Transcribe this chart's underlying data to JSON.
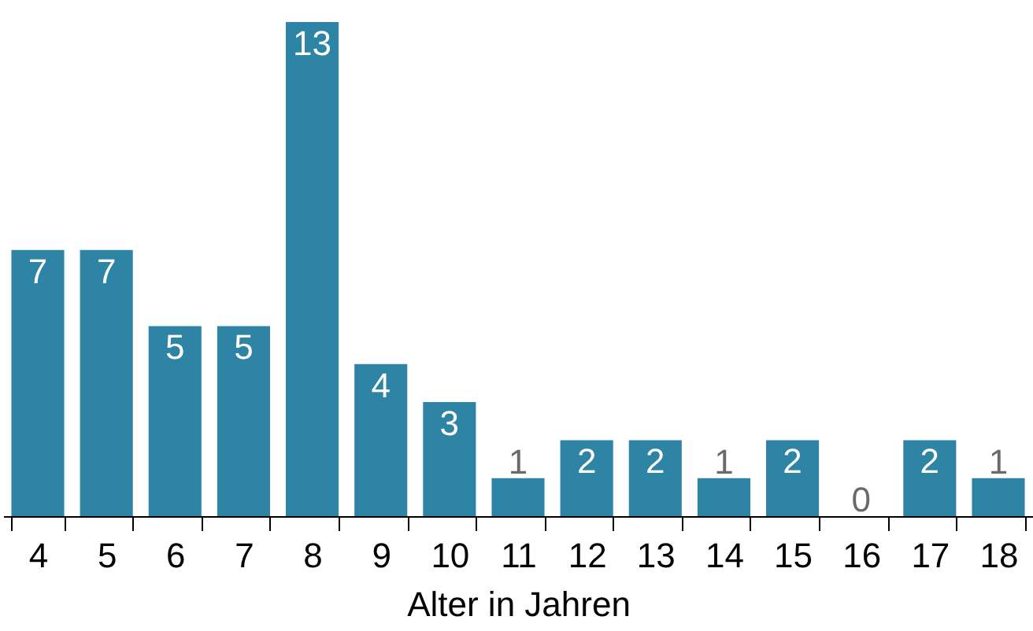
{
  "chart_data": {
    "type": "bar",
    "xlabel": "Alter in Jahren",
    "categories": [
      "4",
      "5",
      "6",
      "7",
      "8",
      "9",
      "10",
      "11",
      "12",
      "13",
      "14",
      "15",
      "16",
      "17",
      "18"
    ],
    "values": [
      7,
      7,
      5,
      5,
      13,
      4,
      3,
      1,
      2,
      2,
      1,
      2,
      0,
      2,
      1
    ],
    "color": "#2e84a5",
    "data_labels": true
  }
}
